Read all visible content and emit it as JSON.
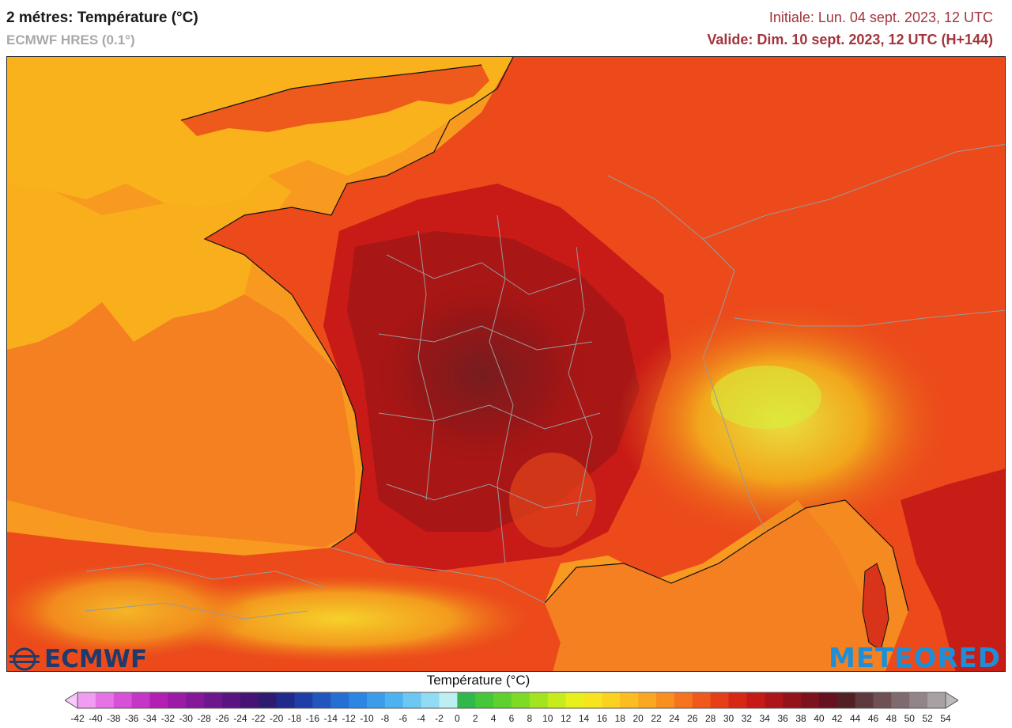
{
  "header": {
    "title": "2 métres: Température (°C)",
    "model": "ECMWF HRES (0.1°)",
    "initial": "Initiale: Lun. 04 sept. 2023, 12 UTC",
    "valid": "Valide: Dim. 10 sept. 2023, 12 UTC (H+144)"
  },
  "logos": {
    "left_name": "ECMWF",
    "right_name": "METEORED"
  },
  "legend": {
    "title": "Température (°C)",
    "ticks": [
      "-42",
      "-40",
      "-38",
      "-36",
      "-34",
      "-32",
      "-30",
      "-28",
      "-26",
      "-24",
      "-22",
      "-20",
      "-18",
      "-16",
      "-14",
      "-12",
      "-10",
      "-8",
      "-6",
      "-4",
      "-2",
      "0",
      "2",
      "4",
      "6",
      "8",
      "10",
      "12",
      "14",
      "16",
      "18",
      "20",
      "22",
      "24",
      "26",
      "28",
      "30",
      "32",
      "34",
      "36",
      "38",
      "40",
      "42",
      "44",
      "46",
      "48",
      "50",
      "52",
      "54"
    ],
    "colors": [
      "#f9c9f9",
      "#f19bf1",
      "#e573e5",
      "#d750d7",
      "#c636c6",
      "#b21fb2",
      "#9b1aa6",
      "#851899",
      "#6d168d",
      "#591481",
      "#461274",
      "#2d1b6f",
      "#1f2a8a",
      "#1f3fa6",
      "#2156bf",
      "#256ed4",
      "#2c86e3",
      "#3a9ceb",
      "#4fb2f0",
      "#6cc7f2",
      "#92dcf3",
      "#bdeef2",
      "#30b84a",
      "#44c83a",
      "#5ed12e",
      "#7ddb26",
      "#a2e420",
      "#c7ec1c",
      "#e8f01c",
      "#f6e41e",
      "#fad21f",
      "#fbbd20",
      "#fba71f",
      "#f98f1e",
      "#f5741d",
      "#ef5a1b",
      "#e63f18",
      "#d92716",
      "#c51a16",
      "#ad1519",
      "#94131b",
      "#7c121d",
      "#66111f",
      "#522022",
      "#5e3a3e",
      "#6e5055",
      "#7f6a70",
      "#928589",
      "#a7a1a4",
      "#bdbbbc"
    ]
  }
}
